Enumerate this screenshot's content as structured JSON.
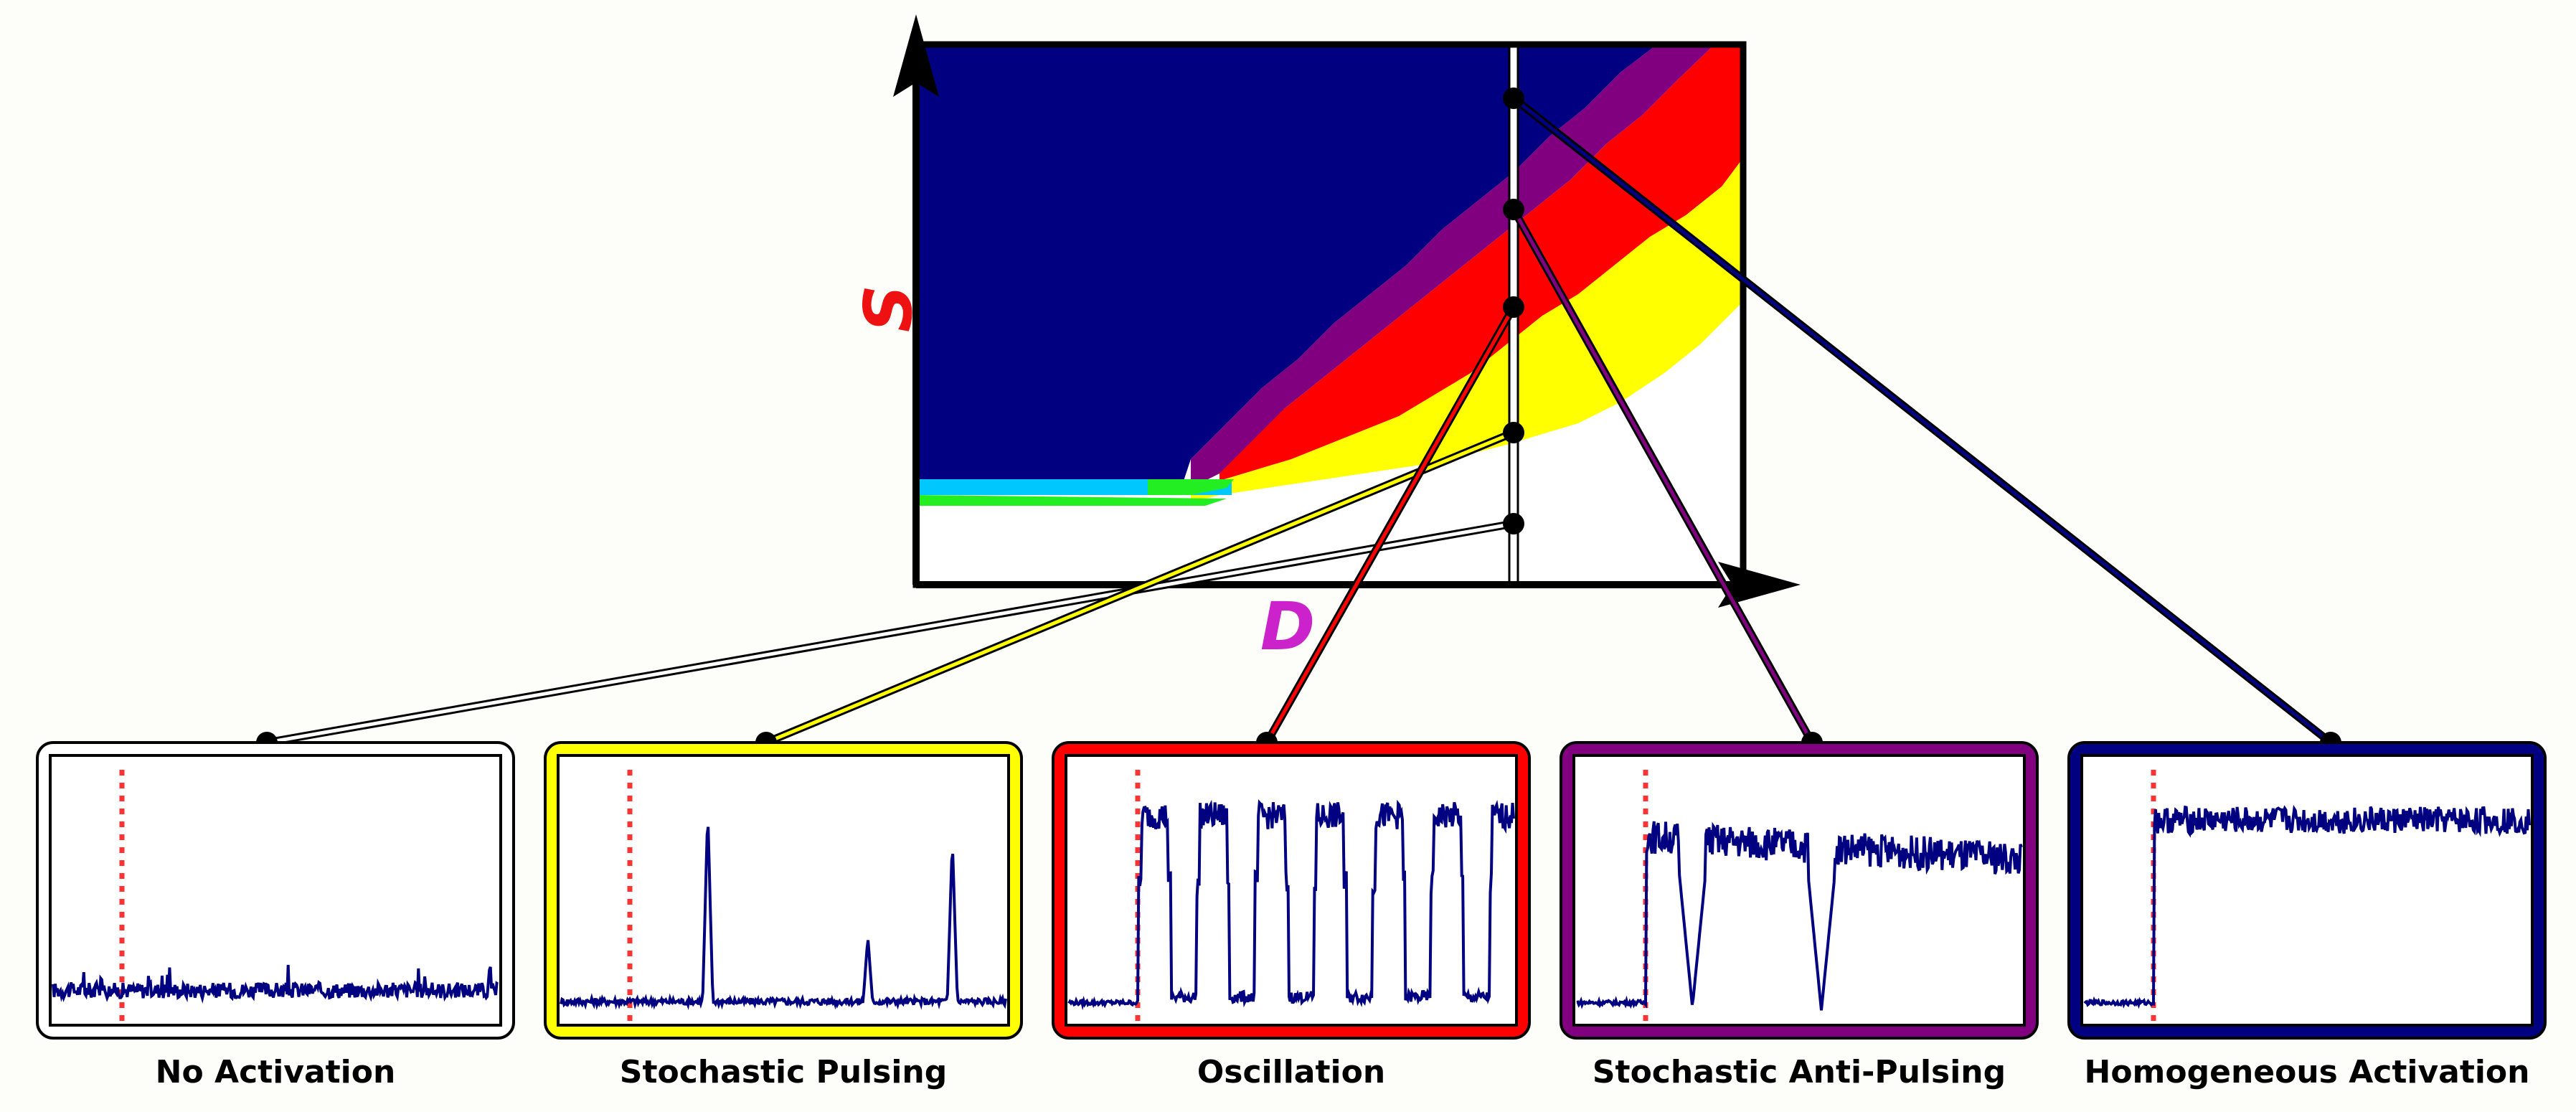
{
  "axes": {
    "x_label": "D",
    "y_label": "S",
    "x_label_color": "#cc22cc",
    "y_label_color": "#ee1111"
  },
  "regions": [
    {
      "name": "no-activation",
      "color": "#ffffff"
    },
    {
      "name": "stochastic-pulsing",
      "color": "#ffff00"
    },
    {
      "name": "oscillation",
      "color": "#ff0000"
    },
    {
      "name": "stochastic-anti-pulsing",
      "color": "#800080"
    },
    {
      "name": "homogeneous-activation",
      "color": "#000080"
    },
    {
      "name": "cyan-band",
      "color": "#00c8ff"
    },
    {
      "name": "green-band",
      "color": "#22ee22"
    }
  ],
  "panels": [
    {
      "caption": "No Activation",
      "border_color": "#ffffff",
      "mode": "flat"
    },
    {
      "caption": "Stochastic Pulsing",
      "border_color": "#ffff00",
      "mode": "pulses"
    },
    {
      "caption": "Oscillation",
      "border_color": "#ff0000",
      "mode": "oscillation"
    },
    {
      "caption": "Stochastic Anti-Pulsing",
      "border_color": "#800080",
      "mode": "antipulse"
    },
    {
      "caption": "Homogeneous Activation",
      "border_color": "#000080",
      "mode": "high"
    }
  ],
  "trace_color": "#000080",
  "marker_color": "#ff3333"
}
